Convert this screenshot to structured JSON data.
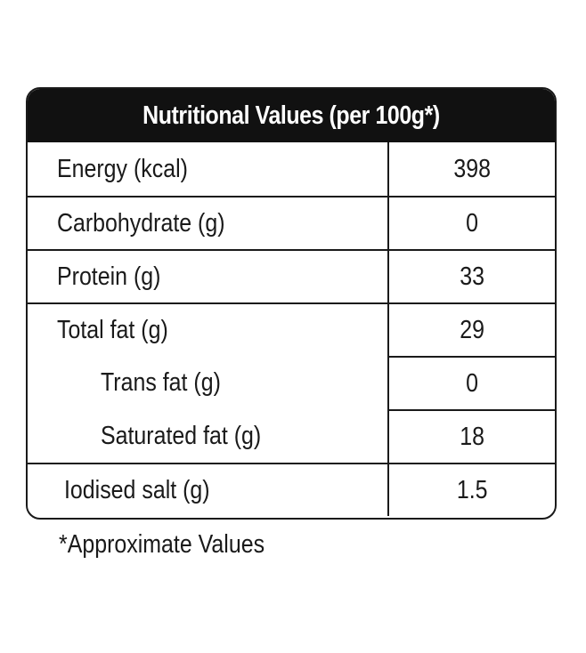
{
  "table": {
    "title": "Nutritional Values (per 100g*)",
    "rows": [
      {
        "label": "Energy (kcal)",
        "value": "398"
      },
      {
        "label": "Carbohydrate (g)",
        "value": "0"
      },
      {
        "label": "Protein (g)",
        "value": "33"
      },
      {
        "label": "Total fat (g)",
        "value": "29"
      },
      {
        "label": "Trans fat (g)",
        "value": "0"
      },
      {
        "label": "Saturated fat (g)",
        "value": "18"
      },
      {
        "label": "Iodised salt (g)",
        "value": "1.5"
      }
    ]
  },
  "footnote": "*Approximate Values",
  "colors": {
    "header_bg": "#111111",
    "header_text": "#ffffff",
    "border": "#1a1a1a",
    "text": "#1a1a1a"
  }
}
